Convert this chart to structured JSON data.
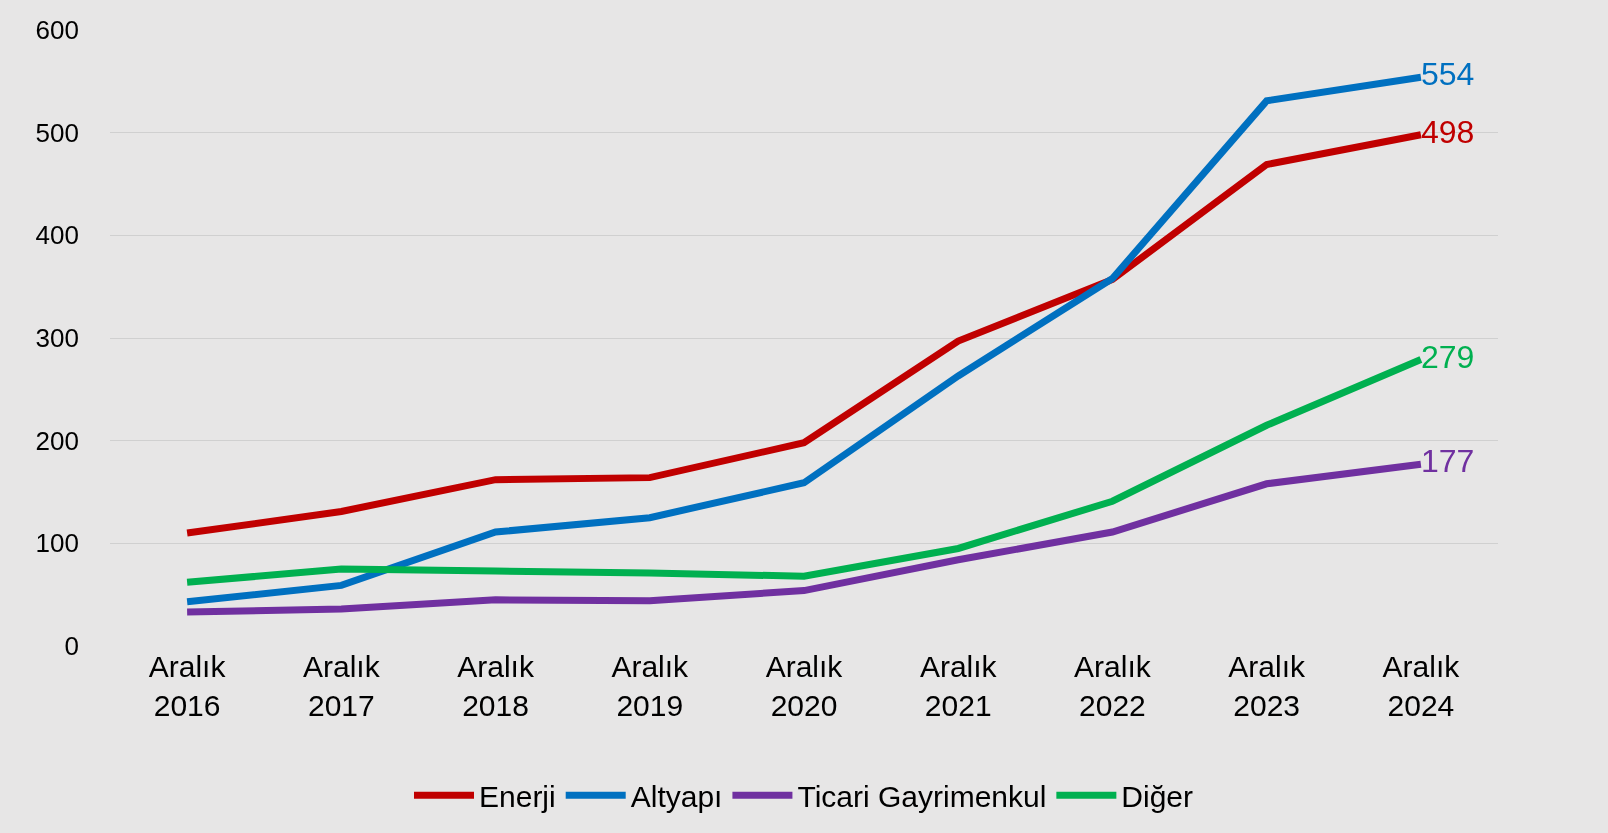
{
  "chart_data": {
    "type": "line",
    "categories": [
      "Aralık\n2016",
      "Aralık\n2017",
      "Aralık\n2018",
      "Aralık\n2019",
      "Aralık\n2020",
      "Aralık\n2021",
      "Aralık\n2022",
      "Aralık\n2023",
      "Aralık\n2024"
    ],
    "series": [
      {
        "name": "Enerji",
        "color": "#c00000",
        "values": [
          110,
          131,
          162,
          164,
          198,
          297,
          357,
          469,
          498
        ],
        "value_labels": [
          null,
          null,
          null,
          null,
          null,
          null,
          null,
          null,
          "498"
        ]
      },
      {
        "name": "Altyapı",
        "color": "#0070c0",
        "values": [
          43,
          59,
          111,
          125,
          159,
          263,
          358,
          531,
          554
        ],
        "value_labels": [
          null,
          null,
          null,
          null,
          null,
          null,
          null,
          null,
          "554"
        ]
      },
      {
        "name": "Ticari Gayrimenkul",
        "color": "#7030a0",
        "values": [
          33,
          36,
          45,
          44,
          54,
          84,
          111,
          158,
          177
        ],
        "value_labels": [
          null,
          null,
          null,
          null,
          null,
          null,
          null,
          null,
          "177"
        ]
      },
      {
        "name": "Diğer",
        "color": "#00b050",
        "values": [
          62,
          75,
          73,
          71,
          68,
          95,
          141,
          215,
          279
        ],
        "value_labels": [
          null,
          null,
          null,
          null,
          null,
          null,
          null,
          null,
          "279"
        ]
      }
    ],
    "ylim": [
      0,
      600
    ],
    "yticks": [
      0,
      100,
      200,
      300,
      400,
      500,
      600
    ],
    "grid": "y",
    "legend": "bottom",
    "marker": "none",
    "line_style": "solid"
  }
}
